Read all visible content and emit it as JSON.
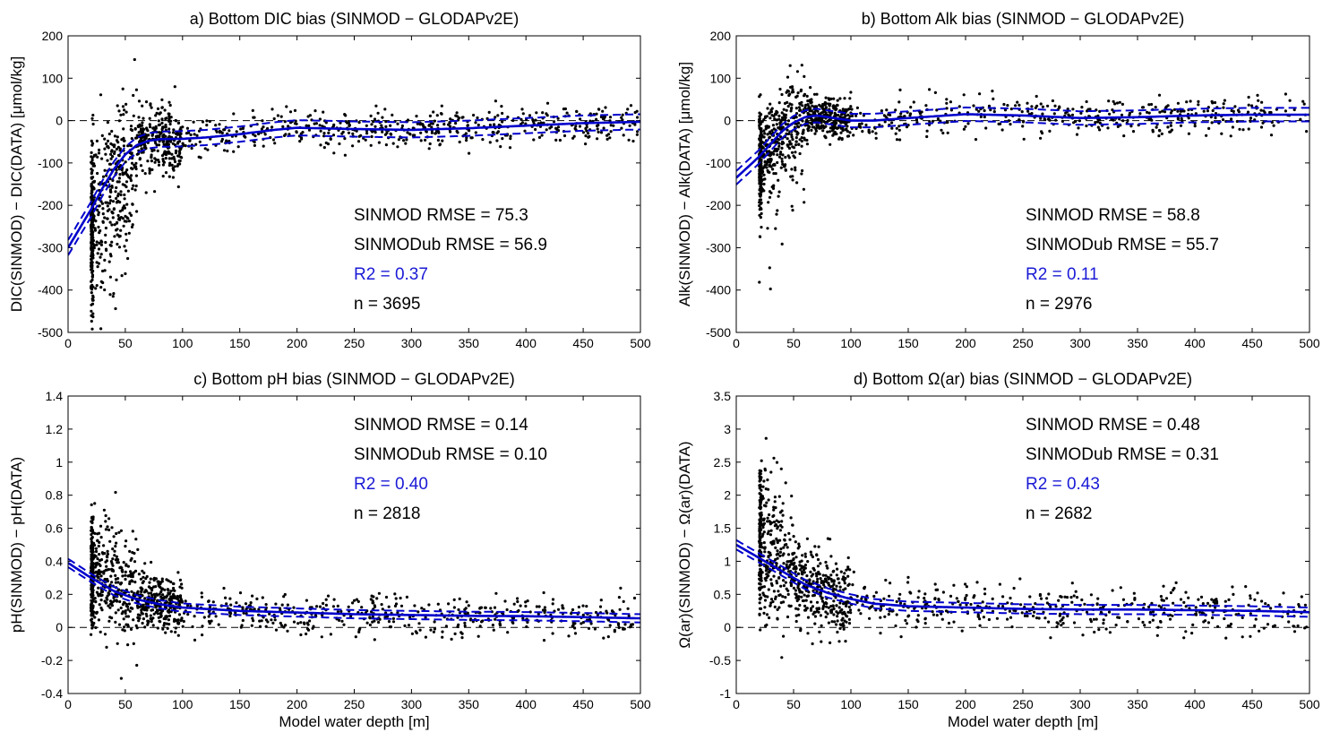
{
  "figure": {
    "xlabel": "Model water depth [m]",
    "colors": {
      "fit": "#0000cc",
      "points": "#000000",
      "zero_line": "#000000",
      "r2_text": "#1a1ad6"
    }
  },
  "chart_data": [
    {
      "type": "scatter",
      "panel": "a",
      "title": "a) Bottom DIC bias (SINMOD − GLODAPv2E)",
      "xlabel": "",
      "ylabel": "DIC(SINMOD) − DIC(DATA) [μmol/kg]",
      "xlim": [
        0,
        500
      ],
      "ylim": [
        -500,
        200
      ],
      "xticks": [
        0,
        50,
        100,
        150,
        200,
        250,
        300,
        350,
        400,
        450,
        500
      ],
      "yticks": [
        -500,
        -400,
        -300,
        -200,
        -100,
        0,
        100,
        200
      ],
      "stats": [
        "SINMOD RMSE = 75.3",
        "SINMODub RMSE = 56.9",
        "R2 = 0.37",
        "n = 3695"
      ],
      "fit": {
        "x": [
          0,
          20,
          30,
          40,
          50,
          60,
          70,
          80,
          100,
          120,
          150,
          180,
          200,
          250,
          300,
          350,
          400,
          450,
          500
        ],
        "y": [
          -300,
          -210,
          -160,
          -115,
          -80,
          -58,
          -48,
          -44,
          -43,
          -40,
          -32,
          -22,
          -17,
          -20,
          -22,
          -18,
          -12,
          -6,
          -3
        ],
        "ci": 18
      },
      "scatter": {
        "n_shown": 1300,
        "seed": 11,
        "kind": "dic"
      }
    },
    {
      "type": "scatter",
      "panel": "b",
      "title": "b) Bottom Alk bias (SINMOD − GLODAPv2E)",
      "xlabel": "",
      "ylabel": "Alk(SINMOD) − Alk(DATA) [μmol/kg]",
      "xlim": [
        0,
        500
      ],
      "ylim": [
        -500,
        200
      ],
      "xticks": [
        0,
        50,
        100,
        150,
        200,
        250,
        300,
        350,
        400,
        450,
        500
      ],
      "yticks": [
        -500,
        -400,
        -300,
        -200,
        -100,
        0,
        100,
        200
      ],
      "stats": [
        "SINMOD RMSE = 58.8",
        "SINMODub RMSE = 55.7",
        "R2 = 0.11",
        "n = 2976"
      ],
      "fit": {
        "x": [
          0,
          20,
          30,
          40,
          50,
          60,
          70,
          80,
          100,
          120,
          150,
          200,
          250,
          300,
          350,
          400,
          450,
          500
        ],
        "y": [
          -135,
          -85,
          -55,
          -25,
          -5,
          8,
          12,
          8,
          0,
          0,
          6,
          15,
          12,
          6,
          8,
          12,
          14,
          14
        ],
        "ci": 16
      },
      "scatter": {
        "n_shown": 1200,
        "seed": 23,
        "kind": "alk"
      }
    },
    {
      "type": "scatter",
      "panel": "c",
      "title": "c) Bottom pH bias (SINMOD − GLODAPv2E)",
      "xlabel": "Model water depth [m]",
      "ylabel": "pH(SINMOD) − pH(DATA)",
      "xlim": [
        0,
        500
      ],
      "ylim": [
        -0.4,
        1.4
      ],
      "xticks": [
        0,
        50,
        100,
        150,
        200,
        250,
        300,
        350,
        400,
        450,
        500
      ],
      "yticks": [
        -0.4,
        -0.2,
        0,
        0.2,
        0.4,
        0.6,
        0.8,
        1,
        1.2,
        1.4
      ],
      "stats": [
        "SINMOD RMSE = 0.14",
        "SINMODub RMSE = 0.10",
        "R2 = 0.40",
        "n = 2818"
      ],
      "fit": {
        "x": [
          0,
          20,
          40,
          60,
          80,
          100,
          150,
          200,
          250,
          300,
          350,
          400,
          450,
          500
        ],
        "y": [
          0.39,
          0.3,
          0.22,
          0.17,
          0.14,
          0.12,
          0.1,
          0.09,
          0.08,
          0.075,
          0.07,
          0.068,
          0.062,
          0.055
        ],
        "ci": 0.025
      },
      "scatter": {
        "n_shown": 1200,
        "seed": 37,
        "kind": "ph"
      }
    },
    {
      "type": "scatter",
      "panel": "d",
      "title": "d) Bottom Ω(ar) bias (SINMOD − GLODAPv2E)",
      "xlabel": "Model water depth [m]",
      "ylabel": "Ω(ar)(SINMOD) − Ω(ar)(DATA)",
      "xlim": [
        0,
        500
      ],
      "ylim": [
        -1,
        3.5
      ],
      "xticks": [
        0,
        50,
        100,
        150,
        200,
        250,
        300,
        350,
        400,
        450,
        500
      ],
      "yticks": [
        -1,
        -0.5,
        0,
        0.5,
        1,
        1.5,
        2,
        2.5,
        3,
        3.5
      ],
      "stats": [
        "SINMOD RMSE = 0.48",
        "SINMODub RMSE = 0.31",
        "R2 = 0.43",
        "n = 2682"
      ],
      "fit": {
        "x": [
          0,
          20,
          40,
          60,
          80,
          100,
          120,
          150,
          200,
          250,
          300,
          350,
          400,
          450,
          500
        ],
        "y": [
          1.25,
          1.05,
          0.85,
          0.65,
          0.52,
          0.43,
          0.36,
          0.32,
          0.3,
          0.28,
          0.27,
          0.27,
          0.26,
          0.25,
          0.23
        ],
        "ci": 0.07
      },
      "scatter": {
        "n_shown": 1100,
        "seed": 53,
        "kind": "omega"
      }
    }
  ]
}
